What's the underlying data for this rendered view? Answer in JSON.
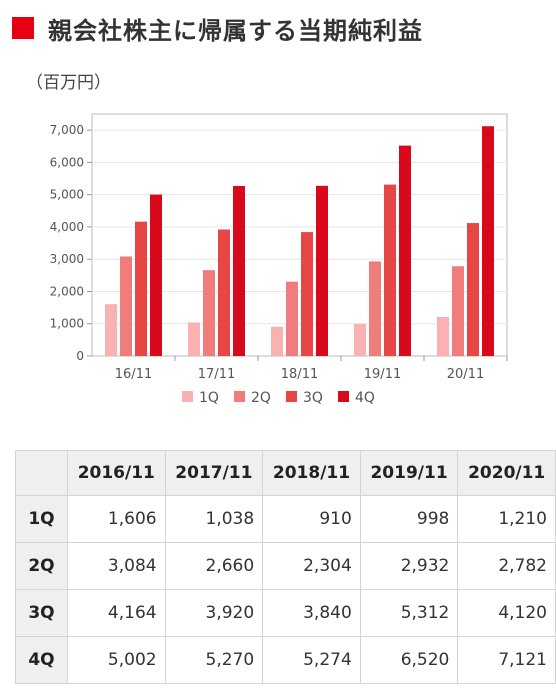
{
  "heading": {
    "title": "親会社株主に帰属する当期純利益"
  },
  "unit_label": "（百万円）",
  "colors": {
    "accent": "#e60012",
    "q1": "#f9b1b1",
    "q2": "#f07c7c",
    "q3": "#e84545",
    "q4": "#d9091c"
  },
  "chart_data": {
    "type": "bar",
    "title": "",
    "xlabel": "",
    "ylabel": "",
    "categories": [
      "16/11",
      "17/11",
      "18/11",
      "19/11",
      "20/11"
    ],
    "series": [
      {
        "name": "1Q",
        "values": [
          1606,
          1038,
          910,
          998,
          1210
        ]
      },
      {
        "name": "2Q",
        "values": [
          3084,
          2660,
          2304,
          2932,
          2782
        ]
      },
      {
        "name": "3Q",
        "values": [
          4164,
          3920,
          3840,
          5312,
          4120
        ]
      },
      {
        "name": "4Q",
        "values": [
          5002,
          5270,
          5274,
          6520,
          7121
        ]
      }
    ],
    "ylim": [
      0,
      7500
    ],
    "yticks": [
      "0",
      "1,000",
      "2,000",
      "3,000",
      "4,000",
      "5,000",
      "6,000",
      "7,000"
    ],
    "grid": true,
    "legend": "bottom"
  },
  "table": {
    "columns": [
      "2016/11",
      "2017/11",
      "2018/11",
      "2019/11",
      "2020/11"
    ],
    "rows": [
      {
        "label": "1Q",
        "cells": [
          "1,606",
          "1,038",
          "910",
          "998",
          "1,210"
        ]
      },
      {
        "label": "2Q",
        "cells": [
          "3,084",
          "2,660",
          "2,304",
          "2,932",
          "2,782"
        ]
      },
      {
        "label": "3Q",
        "cells": [
          "4,164",
          "3,920",
          "3,840",
          "5,312",
          "4,120"
        ]
      },
      {
        "label": "4Q",
        "cells": [
          "5,002",
          "5,270",
          "5,274",
          "6,520",
          "7,121"
        ]
      }
    ]
  }
}
